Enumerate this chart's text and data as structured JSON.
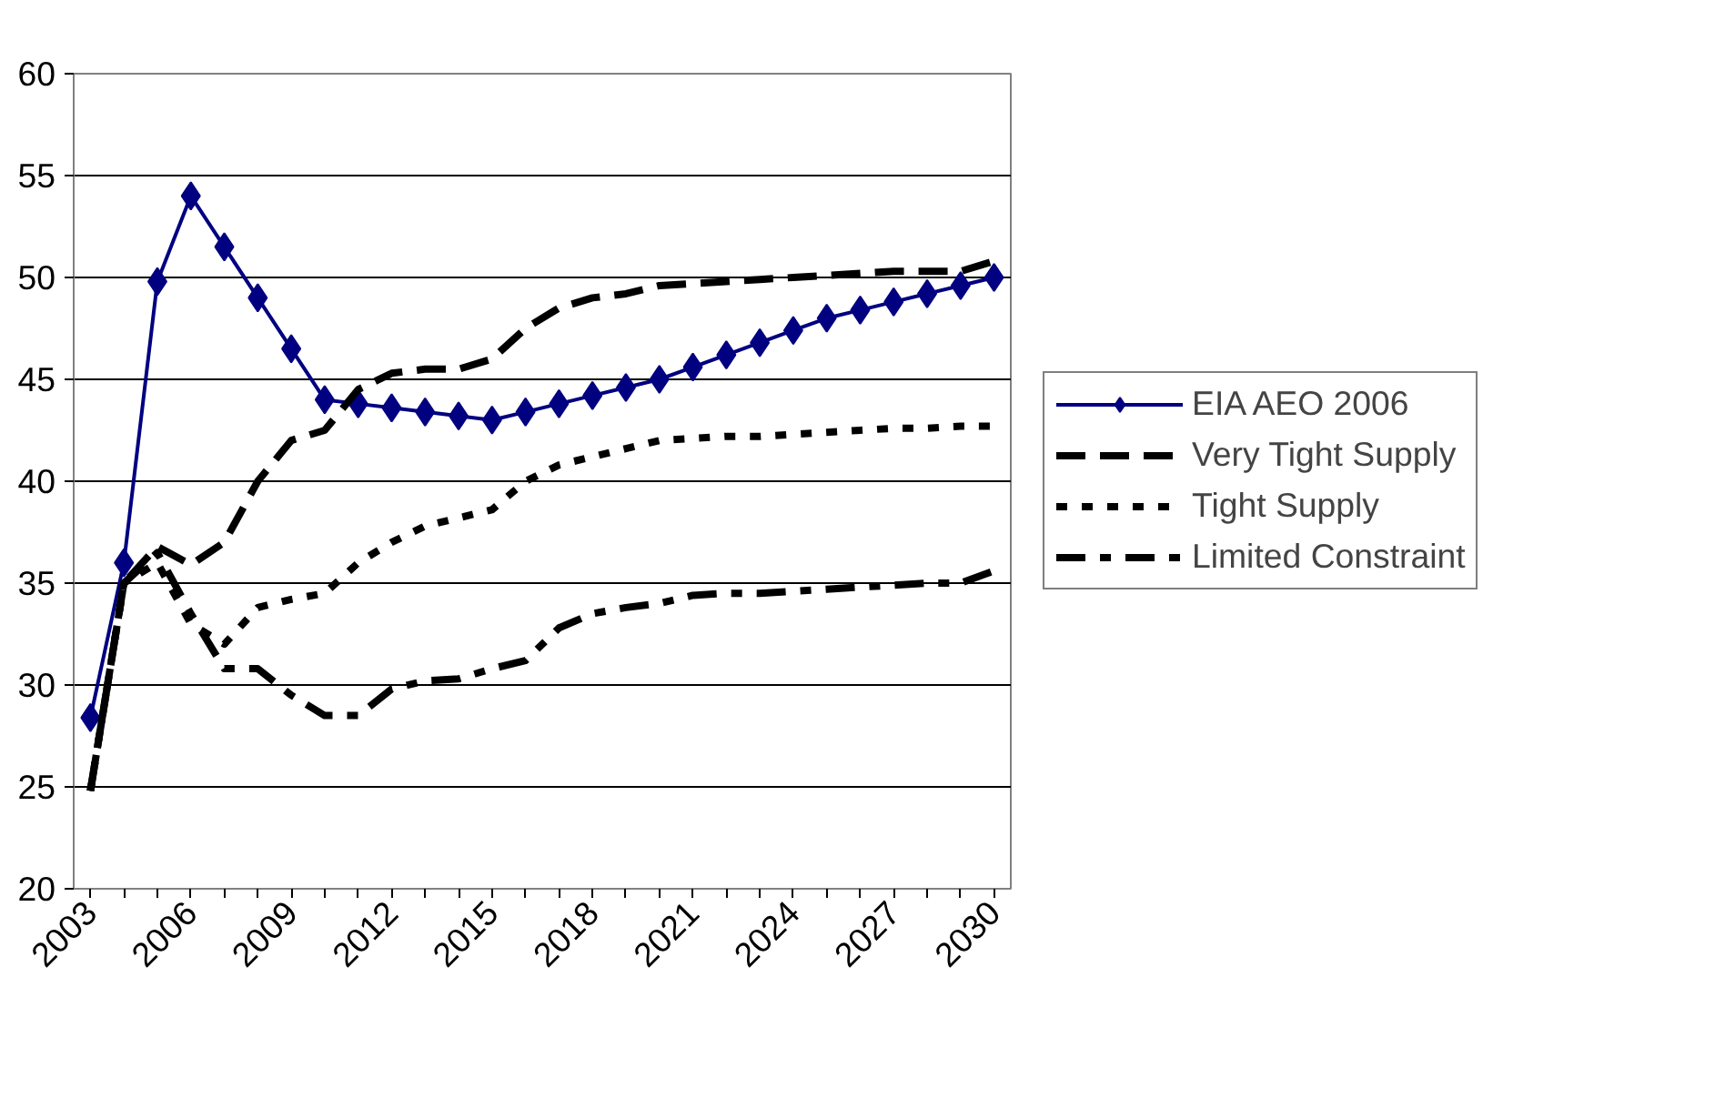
{
  "chart_data": {
    "type": "line",
    "x": [
      2003,
      2004,
      2005,
      2006,
      2007,
      2008,
      2009,
      2010,
      2011,
      2012,
      2013,
      2014,
      2015,
      2016,
      2017,
      2018,
      2019,
      2020,
      2021,
      2022,
      2023,
      2024,
      2025,
      2026,
      2027,
      2028,
      2029,
      2030
    ],
    "series": [
      {
        "name": "EIA AEO 2006",
        "color": "#000080",
        "marker": "diamond",
        "line_style": "solid",
        "values": [
          28.4,
          36,
          49.8,
          54,
          51.5,
          49,
          46.5,
          44,
          43.8,
          43.6,
          43.4,
          43.2,
          43,
          43.4,
          43.8,
          44.2,
          44.6,
          45,
          45.6,
          46.2,
          46.8,
          47.4,
          48,
          48.4,
          48.8,
          49.2,
          49.6,
          50
        ]
      },
      {
        "name": "Very Tight Supply",
        "color": "#000000",
        "marker": "none",
        "line_style": "dashed",
        "values": [
          24.8,
          35,
          36.8,
          35.9,
          37,
          40,
          42,
          42.5,
          44.5,
          45.3,
          45.5,
          45.5,
          46,
          47.5,
          48.5,
          49,
          49.2,
          49.6,
          49.7,
          49.8,
          49.9,
          50,
          50.1,
          50.2,
          50.3,
          50.3,
          50.3,
          50.8
        ]
      },
      {
        "name": "Tight Supply",
        "color": "#000000",
        "marker": "none",
        "line_style": "dotted",
        "values": [
          24.8,
          35,
          36,
          33,
          32,
          33.8,
          34.2,
          34.5,
          36,
          37,
          37.8,
          38.2,
          38.6,
          40,
          40.8,
          41.2,
          41.6,
          42,
          42.1,
          42.2,
          42.2,
          42.3,
          42.4,
          42.5,
          42.6,
          42.6,
          42.7,
          42.7
        ]
      },
      {
        "name": "Limited Constraint",
        "color": "#000000",
        "marker": "none",
        "line_style": "dashdot",
        "values": [
          24.8,
          35,
          36.5,
          33.5,
          30.8,
          30.8,
          29.5,
          28.5,
          28.5,
          29.8,
          30.2,
          30.3,
          30.8,
          31.2,
          32.8,
          33.5,
          33.8,
          34,
          34.4,
          34.5,
          34.5,
          34.6,
          34.7,
          34.8,
          34.9,
          35,
          35,
          35.6
        ]
      }
    ],
    "xlim": [
      2002.5,
      2030.5
    ],
    "xticks": [
      2003,
      {
        "value": 2004,
        "label": null
      },
      {
        "value": 2005,
        "label": null
      },
      2006,
      {
        "value": 2007,
        "label": null
      },
      {
        "value": 2008,
        "label": null
      },
      2009,
      {
        "value": 2010,
        "label": null
      },
      {
        "value": 2011,
        "label": null
      },
      2012,
      {
        "value": 2013,
        "label": null
      },
      {
        "value": 2014,
        "label": null
      },
      2015,
      {
        "value": 2016,
        "label": null
      },
      {
        "value": 2017,
        "label": null
      },
      2018,
      {
        "value": 2019,
        "label": null
      },
      {
        "value": 2020,
        "label": null
      },
      2021,
      {
        "value": 2022,
        "label": null
      },
      {
        "value": 2023,
        "label": null
      },
      2024,
      {
        "value": 2025,
        "label": null
      },
      {
        "value": 2026,
        "label": null
      },
      2027,
      {
        "value": 2028,
        "label": null
      },
      {
        "value": 2029,
        "label": null
      },
      2030
    ],
    "ylim": [
      20,
      60
    ],
    "yticks": [
      20,
      25,
      30,
      35,
      40,
      45,
      50,
      55,
      60
    ],
    "grid": "y",
    "legend": "right"
  }
}
